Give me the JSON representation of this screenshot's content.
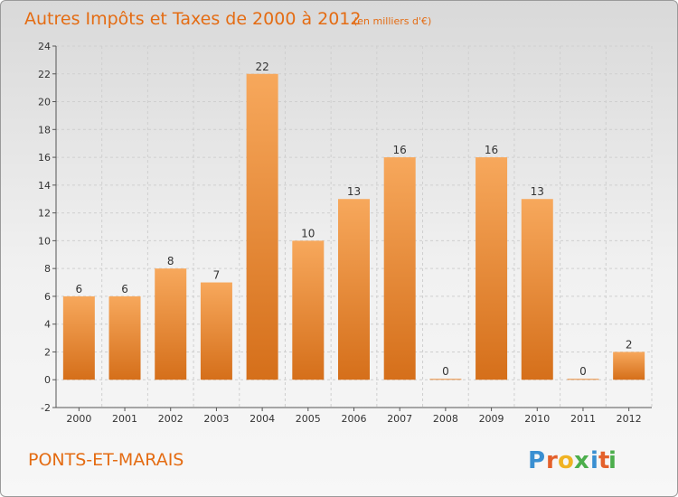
{
  "title": "Autres Impôts et Taxes de 2000 à 2012",
  "unit": "(en milliers d'€)",
  "commune": "PONTS-ET-MARAIS",
  "logo": {
    "letters": [
      "P",
      "r",
      "o",
      "x",
      "i",
      "t",
      "i"
    ],
    "colors": [
      "#3a8fd1",
      "#e4602b",
      "#f0b323",
      "#4cae4c",
      "#3a8fd1",
      "#e4602b",
      "#4cae4c"
    ]
  },
  "colors": {
    "bar_light": "#f7a85c",
    "bar_dark": "#d56f1a",
    "accent": "#e46c13"
  },
  "chart_data": {
    "type": "bar",
    "categories": [
      "2000",
      "2001",
      "2002",
      "2003",
      "2004",
      "2005",
      "2006",
      "2007",
      "2008",
      "2009",
      "2010",
      "2011",
      "2012"
    ],
    "values": [
      6,
      6,
      8,
      7,
      22,
      10,
      13,
      16,
      0,
      16,
      13,
      0,
      2
    ],
    "ylim": [
      -2,
      24
    ],
    "yticks": [
      -2,
      0,
      2,
      4,
      6,
      8,
      10,
      12,
      14,
      16,
      18,
      20,
      22,
      24
    ],
    "grid": true,
    "legend": "none"
  }
}
